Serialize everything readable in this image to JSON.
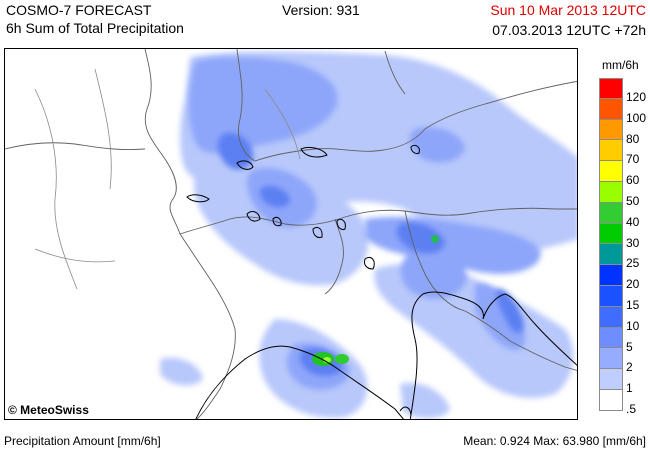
{
  "header": {
    "title": "COSMO-7 FORECAST",
    "subtitle": "6h Sum of Total Precipitation",
    "version": "Version: 931",
    "valid_time": "Sun 10 Mar 2013 12UTC",
    "run_time": "07.03.2013 12UTC +72h",
    "valid_time_color": "#e00000"
  },
  "map": {
    "copyright": "© MeteoSwiss",
    "region": "Alps / northern Italy",
    "precip_color_field": "#4a78f0"
  },
  "legend": {
    "unit": "mm/6h",
    "classes": [
      {
        "label": "120",
        "color": "#ff0000"
      },
      {
        "label": "100",
        "color": "#ff5500"
      },
      {
        "label": "80",
        "color": "#ff9900"
      },
      {
        "label": "70",
        "color": "#ffcc00"
      },
      {
        "label": "60",
        "color": "#ffff00"
      },
      {
        "label": "50",
        "color": "#99ff00"
      },
      {
        "label": "40",
        "color": "#33cc33"
      },
      {
        "label": "30",
        "color": "#00cc00"
      },
      {
        "label": "25",
        "color": "#009999"
      },
      {
        "label": "20",
        "color": "#0033ff"
      },
      {
        "label": "15",
        "color": "#1a52ff"
      },
      {
        "label": "10",
        "color": "#3f6dff"
      },
      {
        "label": "5",
        "color": "#6e8eff"
      },
      {
        "label": "2",
        "color": "#96adff"
      },
      {
        "label": "1",
        "color": "#c0ceff"
      },
      {
        "label": ".5",
        "color": "#ffffff"
      }
    ]
  },
  "footer": {
    "left": "Precipitation Amount [mm/6h]",
    "right": "Mean:  0.924 Max:  63.980 [mm/6h]"
  }
}
